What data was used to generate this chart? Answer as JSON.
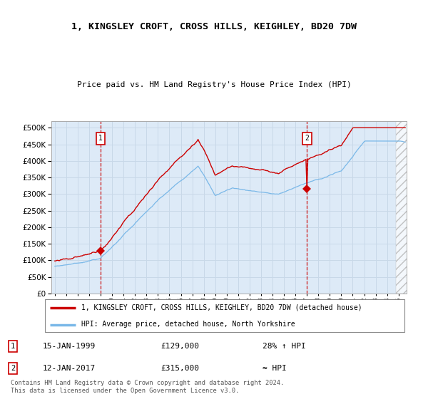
{
  "title_line1": "1, KINGSLEY CROFT, CROSS HILLS, KEIGHLEY, BD20 7DW",
  "title_line2": "Price paid vs. HM Land Registry's House Price Index (HPI)",
  "legend_line1": "1, KINGSLEY CROFT, CROSS HILLS, KEIGHLEY, BD20 7DW (detached house)",
  "legend_line2": "HPI: Average price, detached house, North Yorkshire",
  "annotation1_label": "1",
  "annotation1_date": "15-JAN-1999",
  "annotation1_price": "£129,000",
  "annotation1_hpi": "28% ↑ HPI",
  "annotation2_label": "2",
  "annotation2_date": "12-JAN-2017",
  "annotation2_price": "£315,000",
  "annotation2_hpi": "≈ HPI",
  "footer": "Contains HM Land Registry data © Crown copyright and database right 2024.\nThis data is licensed under the Open Government Licence v3.0.",
  "sale1_year": 1999.04,
  "sale1_price": 129000,
  "sale2_year": 2017.04,
  "sale2_price": 315000,
  "hpi_color": "#7ab8e8",
  "price_color": "#cc0000",
  "bg_color": "#ddeaf7",
  "grid_color": "#c8d8e8",
  "ylim_min": 0,
  "ylim_max": 520000,
  "xstart": 1994.7,
  "xend": 2025.7,
  "yticks": [
    0,
    50000,
    100000,
    150000,
    200000,
    250000,
    300000,
    350000,
    400000,
    450000,
    500000
  ],
  "xtick_years": [
    1995,
    1996,
    1997,
    1998,
    1999,
    2000,
    2001,
    2002,
    2003,
    2004,
    2005,
    2006,
    2007,
    2008,
    2009,
    2010,
    2011,
    2012,
    2013,
    2014,
    2015,
    2016,
    2017,
    2018,
    2019,
    2020,
    2021,
    2022,
    2023,
    2024,
    2025
  ]
}
